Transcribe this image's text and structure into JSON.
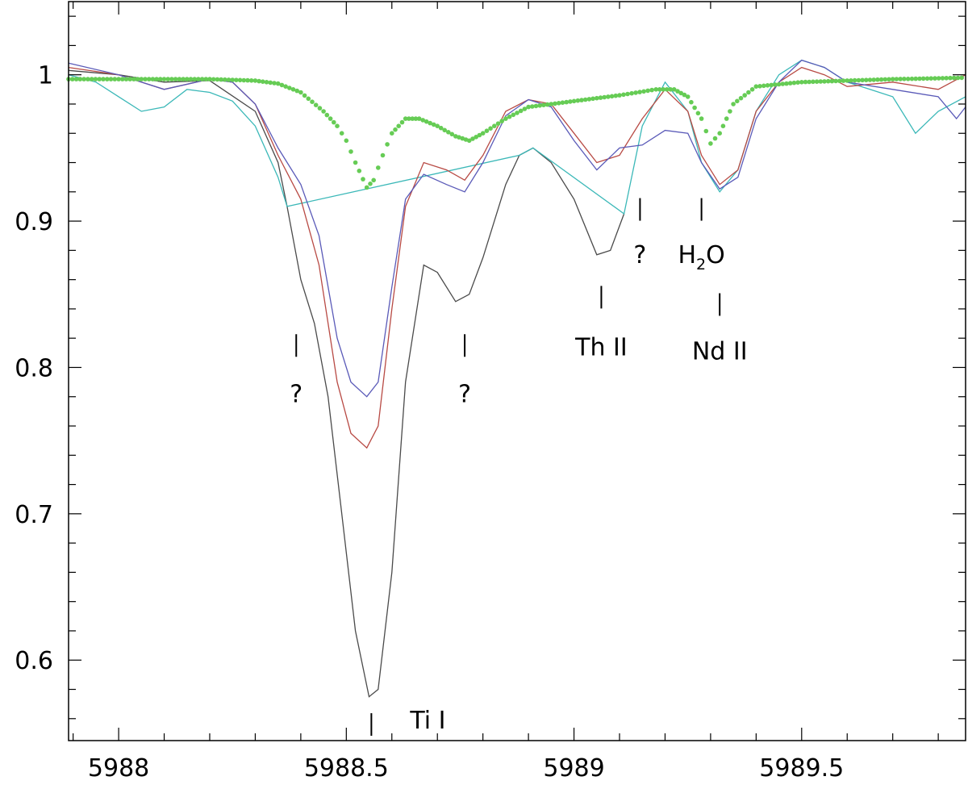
{
  "chart_data": {
    "type": "line",
    "title": "",
    "xlabel": "",
    "ylabel": "",
    "xlim": [
      5987.89,
      5989.86
    ],
    "ylim": [
      0.545,
      1.05
    ],
    "grid": false,
    "x_ticks": {
      "major": [
        5988,
        5988.5,
        5989,
        5989.5
      ],
      "major_labels": [
        "5988",
        "5988.5",
        "5989",
        "5989.5"
      ],
      "minor_step": 0.1
    },
    "y_ticks": {
      "major": [
        0.6,
        0.7,
        0.8,
        0.9,
        1.0
      ],
      "major_labels": [
        "0.6",
        "0.7",
        "0.8",
        "0.9",
        "1"
      ],
      "minor_step": 0.02
    },
    "series": [
      {
        "color": "#4a4a4a",
        "style": "line",
        "points": [
          [
            5987.89,
            1.003
          ],
          [
            5988.0,
            1.0
          ],
          [
            5988.1,
            0.995
          ],
          [
            5988.2,
            0.996
          ],
          [
            5988.3,
            0.975
          ],
          [
            5988.35,
            0.94
          ],
          [
            5988.37,
            0.91
          ],
          [
            5988.4,
            0.86
          ],
          [
            5988.43,
            0.83
          ],
          [
            5988.46,
            0.78
          ],
          [
            5988.49,
            0.7
          ],
          [
            5988.52,
            0.62
          ],
          [
            5988.55,
            0.575
          ],
          [
            5988.57,
            0.58
          ],
          [
            5988.6,
            0.66
          ],
          [
            5988.63,
            0.79
          ],
          [
            5988.67,
            0.87
          ],
          [
            5988.7,
            0.865
          ],
          [
            5988.74,
            0.845
          ],
          [
            5988.77,
            0.85
          ],
          [
            5988.8,
            0.875
          ],
          [
            5988.85,
            0.925
          ],
          [
            5988.88,
            0.945
          ],
          [
            5988.91,
            0.95
          ],
          [
            5988.95,
            0.94
          ],
          [
            5989.0,
            0.915
          ],
          [
            5989.05,
            0.877
          ],
          [
            5989.08,
            0.88
          ],
          [
            5989.11,
            0.905
          ]
        ]
      },
      {
        "color": "#3bb8b8",
        "style": "line",
        "points": [
          [
            5987.89,
            1.0
          ],
          [
            5987.95,
            0.995
          ],
          [
            5988.0,
            0.985
          ],
          [
            5988.05,
            0.975
          ],
          [
            5988.1,
            0.978
          ],
          [
            5988.15,
            0.99
          ],
          [
            5988.2,
            0.988
          ],
          [
            5988.25,
            0.982
          ],
          [
            5988.3,
            0.965
          ],
          [
            5988.35,
            0.93
          ],
          [
            5988.37,
            0.91
          ],
          [
            5988.88,
            0.945
          ],
          [
            5988.91,
            0.95
          ],
          [
            5989.11,
            0.905
          ],
          [
            5989.15,
            0.965
          ],
          [
            5989.2,
            0.995
          ],
          [
            5989.25,
            0.975
          ],
          [
            5989.28,
            0.94
          ],
          [
            5989.32,
            0.92
          ],
          [
            5989.36,
            0.935
          ],
          [
            5989.4,
            0.975
          ],
          [
            5989.45,
            1.0
          ],
          [
            5989.5,
            1.01
          ],
          [
            5989.55,
            1.005
          ],
          [
            5989.6,
            0.995
          ],
          [
            5989.65,
            0.99
          ],
          [
            5989.7,
            0.985
          ],
          [
            5989.75,
            0.96
          ],
          [
            5989.8,
            0.975
          ],
          [
            5989.86,
            0.985
          ]
        ]
      },
      {
        "color": "#b84a44",
        "style": "line",
        "points": [
          [
            5987.89,
            1.005
          ],
          [
            5988.0,
            1.0
          ],
          [
            5988.1,
            0.99
          ],
          [
            5988.2,
            0.997
          ],
          [
            5988.25,
            0.995
          ],
          [
            5988.3,
            0.98
          ],
          [
            5988.35,
            0.945
          ],
          [
            5988.4,
            0.915
          ],
          [
            5988.44,
            0.87
          ],
          [
            5988.48,
            0.79
          ],
          [
            5988.51,
            0.755
          ],
          [
            5988.545,
            0.745
          ],
          [
            5988.57,
            0.76
          ],
          [
            5988.6,
            0.84
          ],
          [
            5988.63,
            0.91
          ],
          [
            5988.67,
            0.94
          ],
          [
            5988.72,
            0.935
          ],
          [
            5988.76,
            0.928
          ],
          [
            5988.8,
            0.945
          ],
          [
            5988.85,
            0.975
          ],
          [
            5988.9,
            0.983
          ],
          [
            5988.95,
            0.98
          ],
          [
            5989.0,
            0.96
          ],
          [
            5989.05,
            0.94
          ],
          [
            5989.1,
            0.945
          ],
          [
            5989.15,
            0.97
          ],
          [
            5989.2,
            0.99
          ],
          [
            5989.25,
            0.975
          ],
          [
            5989.28,
            0.945
          ],
          [
            5989.32,
            0.925
          ],
          [
            5989.36,
            0.935
          ],
          [
            5989.4,
            0.975
          ],
          [
            5989.45,
            0.995
          ],
          [
            5989.5,
            1.005
          ],
          [
            5989.55,
            1.0
          ],
          [
            5989.6,
            0.992
          ],
          [
            5989.7,
            0.995
          ],
          [
            5989.8,
            0.99
          ],
          [
            5989.86,
            1.0
          ]
        ]
      },
      {
        "color": "#5a5ab8",
        "style": "line",
        "points": [
          [
            5987.89,
            1.008
          ],
          [
            5988.0,
            1.0
          ],
          [
            5988.1,
            0.99
          ],
          [
            5988.2,
            0.997
          ],
          [
            5988.25,
            0.995
          ],
          [
            5988.3,
            0.98
          ],
          [
            5988.35,
            0.95
          ],
          [
            5988.4,
            0.925
          ],
          [
            5988.44,
            0.89
          ],
          [
            5988.48,
            0.82
          ],
          [
            5988.51,
            0.79
          ],
          [
            5988.545,
            0.78
          ],
          [
            5988.57,
            0.79
          ],
          [
            5988.6,
            0.855
          ],
          [
            5988.63,
            0.915
          ],
          [
            5988.67,
            0.932
          ],
          [
            5988.72,
            0.925
          ],
          [
            5988.76,
            0.92
          ],
          [
            5988.8,
            0.94
          ],
          [
            5988.85,
            0.972
          ],
          [
            5988.9,
            0.983
          ],
          [
            5988.95,
            0.978
          ],
          [
            5989.0,
            0.955
          ],
          [
            5989.05,
            0.935
          ],
          [
            5989.1,
            0.95
          ],
          [
            5989.15,
            0.952
          ],
          [
            5989.2,
            0.962
          ],
          [
            5989.25,
            0.96
          ],
          [
            5989.28,
            0.94
          ],
          [
            5989.32,
            0.922
          ],
          [
            5989.36,
            0.93
          ],
          [
            5989.4,
            0.97
          ],
          [
            5989.45,
            0.995
          ],
          [
            5989.5,
            1.01
          ],
          [
            5989.55,
            1.005
          ],
          [
            5989.6,
            0.995
          ],
          [
            5989.7,
            0.99
          ],
          [
            5989.8,
            0.985
          ],
          [
            5989.84,
            0.97
          ],
          [
            5989.86,
            0.978
          ]
        ]
      },
      {
        "color": "#66cc55",
        "style": "dots",
        "points": [
          [
            5987.89,
            0.997
          ],
          [
            5988.0,
            0.997
          ],
          [
            5988.1,
            0.997
          ],
          [
            5988.2,
            0.997
          ],
          [
            5988.3,
            0.996
          ],
          [
            5988.35,
            0.994
          ],
          [
            5988.4,
            0.988
          ],
          [
            5988.45,
            0.975
          ],
          [
            5988.48,
            0.965
          ],
          [
            5988.5,
            0.955
          ],
          [
            5988.52,
            0.94
          ],
          [
            5988.545,
            0.923
          ],
          [
            5988.56,
            0.928
          ],
          [
            5988.58,
            0.945
          ],
          [
            5988.6,
            0.96
          ],
          [
            5988.63,
            0.97
          ],
          [
            5988.66,
            0.97
          ],
          [
            5988.7,
            0.965
          ],
          [
            5988.74,
            0.958
          ],
          [
            5988.77,
            0.955
          ],
          [
            5988.8,
            0.96
          ],
          [
            5988.85,
            0.97
          ],
          [
            5988.9,
            0.978
          ],
          [
            5989.0,
            0.982
          ],
          [
            5989.1,
            0.986
          ],
          [
            5989.18,
            0.99
          ],
          [
            5989.22,
            0.99
          ],
          [
            5989.25,
            0.985
          ],
          [
            5989.28,
            0.97
          ],
          [
            5989.3,
            0.953
          ],
          [
            5989.32,
            0.96
          ],
          [
            5989.35,
            0.98
          ],
          [
            5989.4,
            0.992
          ],
          [
            5989.5,
            0.995
          ],
          [
            5989.6,
            0.996
          ],
          [
            5989.7,
            0.997
          ],
          [
            5989.86,
            0.998
          ]
        ]
      }
    ],
    "annotations": [
      {
        "label": "?",
        "x": 5988.39,
        "y_mark": 0.815,
        "y_text": 0.783,
        "pos": "below"
      },
      {
        "label": "Ti I",
        "x": 5988.555,
        "y_mark": 0.556,
        "y_text": 0.56,
        "pos": "right"
      },
      {
        "label": "?",
        "x": 5988.76,
        "y_mark": 0.815,
        "y_text": 0.783,
        "pos": "below"
      },
      {
        "label": "Th II",
        "x": 5989.06,
        "y_mark": 0.848,
        "y_text": 0.815,
        "pos": "below"
      },
      {
        "label": "?",
        "x": 5989.145,
        "y_mark": 0.908,
        "y_text": 0.878,
        "pos": "below"
      },
      {
        "label": "H",
        "sub": "2",
        "suffix": "O",
        "x": 5989.28,
        "y_mark": 0.908,
        "y_text": 0.878,
        "pos": "below"
      },
      {
        "label": "Nd II",
        "x": 5989.32,
        "y_mark": 0.843,
        "y_text": 0.812,
        "pos": "below"
      }
    ]
  }
}
